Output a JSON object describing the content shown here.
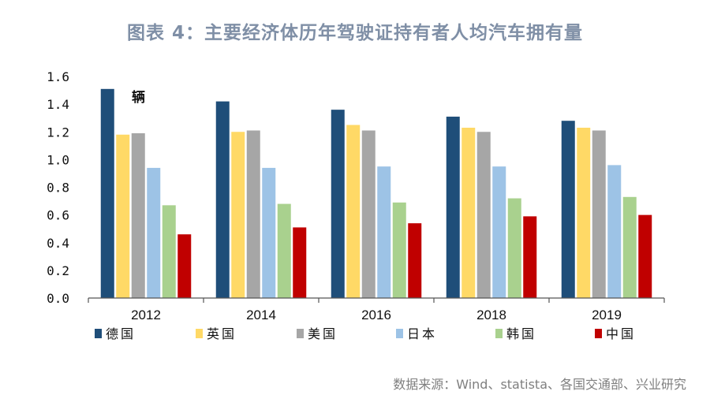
{
  "title": "图表 4：主要经济体历年驾驶证持有者人均汽车拥有量",
  "source": "数据来源：Wind、statista、各国交通部、兴业研究",
  "chart_data": {
    "type": "bar",
    "unit_label": "辆",
    "categories": [
      "2012",
      "2014",
      "2016",
      "2018",
      "2019"
    ],
    "ylim": [
      0,
      1.6
    ],
    "yticks": [
      "0.0",
      "0.2",
      "0.4",
      "0.6",
      "0.8",
      "1.0",
      "1.2",
      "1.4",
      "1.6"
    ],
    "grid": false,
    "legend_position": "bottom",
    "series": [
      {
        "name": "德国",
        "color": "#1f4e79",
        "values": [
          1.51,
          1.42,
          1.36,
          1.31,
          1.28
        ]
      },
      {
        "name": "英国",
        "color": "#ffd966",
        "values": [
          1.18,
          1.2,
          1.25,
          1.23,
          1.23
        ]
      },
      {
        "name": "美国",
        "color": "#a6a6a6",
        "values": [
          1.19,
          1.21,
          1.21,
          1.2,
          1.21
        ]
      },
      {
        "name": "日本",
        "color": "#9dc3e6",
        "values": [
          0.94,
          0.94,
          0.95,
          0.95,
          0.96
        ]
      },
      {
        "name": "韩国",
        "color": "#a9d18e",
        "values": [
          0.67,
          0.68,
          0.69,
          0.72,
          0.73
        ]
      },
      {
        "name": "中国",
        "color": "#c00000",
        "values": [
          0.46,
          0.51,
          0.54,
          0.59,
          0.6
        ]
      }
    ]
  }
}
